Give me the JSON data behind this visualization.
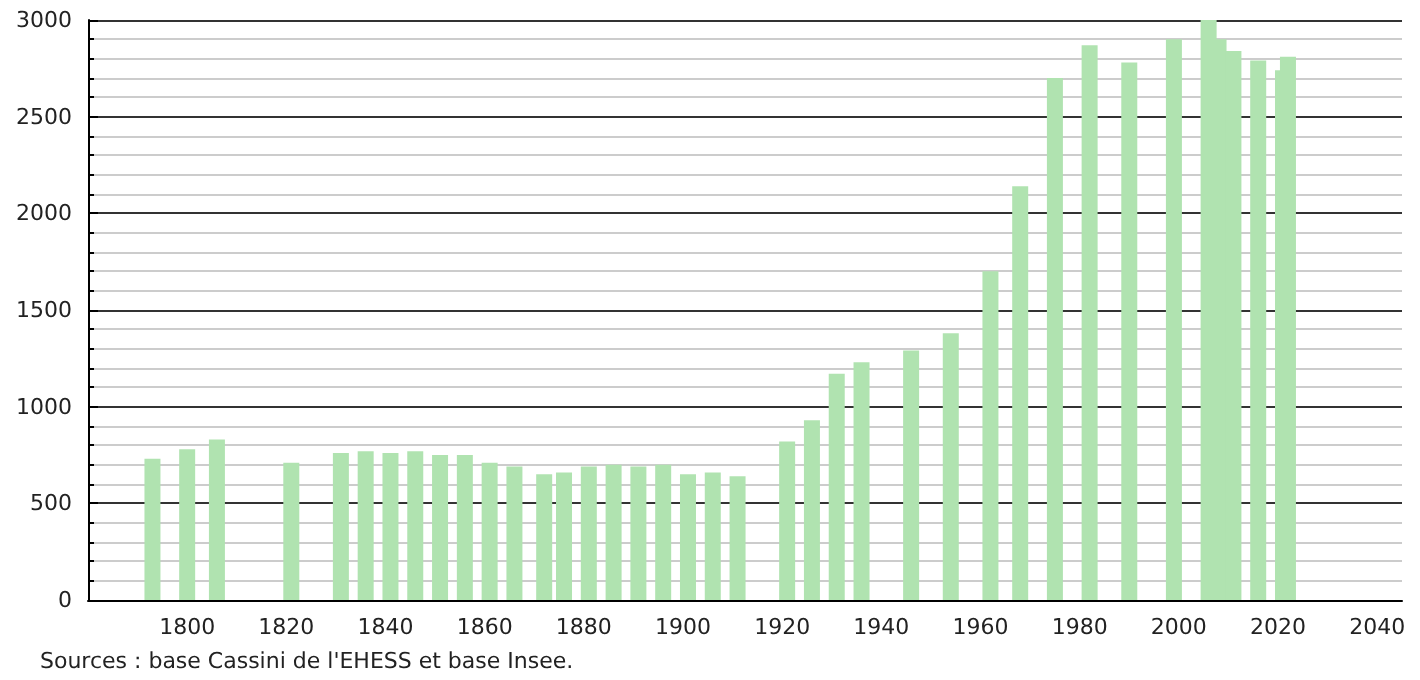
{
  "chart_data": {
    "type": "bar",
    "x": [
      1793,
      1800,
      1806,
      1821,
      1831,
      1836,
      1841,
      1846,
      1851,
      1856,
      1861,
      1866,
      1872,
      1876,
      1881,
      1886,
      1891,
      1896,
      1901,
      1906,
      1911,
      1921,
      1926,
      1931,
      1936,
      1946,
      1954,
      1962,
      1968,
      1975,
      1982,
      1990,
      1999,
      2006,
      2008,
      2011,
      2016,
      2021,
      2022
    ],
    "values": [
      730,
      780,
      830,
      710,
      760,
      770,
      760,
      770,
      750,
      750,
      710,
      690,
      650,
      660,
      690,
      700,
      690,
      700,
      650,
      660,
      640,
      820,
      930,
      1170,
      1230,
      1290,
      1380,
      1700,
      2140,
      2700,
      2870,
      2780,
      2900,
      3000,
      2900,
      2840,
      2790,
      2740,
      2810
    ],
    "color": "#b0e3b0",
    "xlim": [
      1780,
      2045
    ],
    "xticks": [
      1800,
      1820,
      1840,
      1860,
      1880,
      1900,
      1920,
      1940,
      1960,
      1980,
      2000,
      2020,
      2040
    ],
    "ylim": [
      0,
      3000
    ],
    "yticks": [
      0,
      500,
      1000,
      1500,
      2000,
      2500,
      3000
    ],
    "grid": "y",
    "annotations": [
      "Sources : base Cassini de l'EHESS et base Insee."
    ]
  }
}
